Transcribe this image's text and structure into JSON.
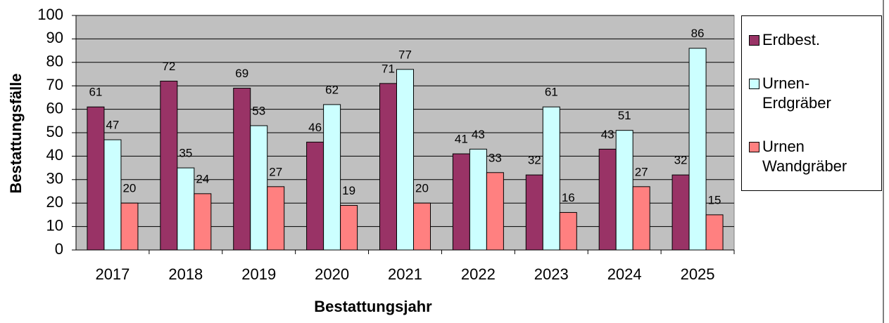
{
  "chart_data": {
    "type": "bar",
    "x_label": "Bestattungsjahr",
    "y_label": "Bestattungsfälle",
    "categories": [
      "2017",
      "2018",
      "2019",
      "2020",
      "2021",
      "2022",
      "2023",
      "2024",
      "2025"
    ],
    "series": [
      {
        "name": "Erdbest.",
        "color": "#993366",
        "values": [
          61,
          72,
          69,
          46,
          71,
          41,
          32,
          43,
          32
        ]
      },
      {
        "name": "Urnen-Erdgräber",
        "color": "#ccffff",
        "values": [
          47,
          35,
          53,
          62,
          77,
          43,
          61,
          51,
          86
        ]
      },
      {
        "name": "Urnen Wandgräber",
        "color": "#ff8080",
        "values": [
          20,
          24,
          27,
          19,
          20,
          33,
          16,
          27,
          15
        ]
      }
    ],
    "ylim": [
      0,
      100
    ],
    "yticks": [
      0,
      10,
      20,
      30,
      40,
      50,
      60,
      70,
      80,
      90,
      100
    ],
    "grid": true,
    "legend": "right",
    "plot_background": "#c0c0c0"
  }
}
